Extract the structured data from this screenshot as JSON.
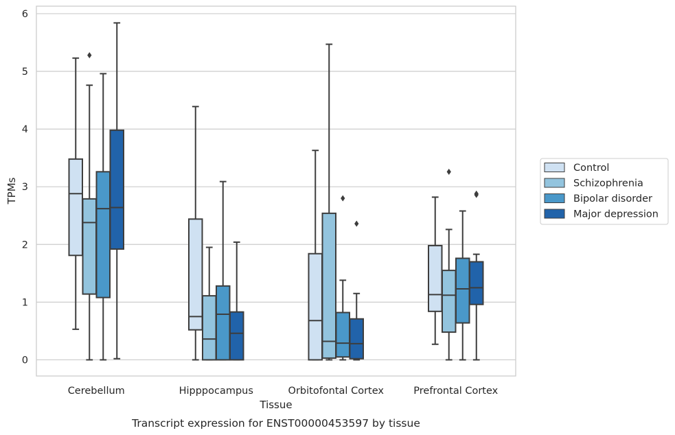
{
  "chart_data": {
    "type": "box",
    "xlabel": "Tissue",
    "ylabel": "TPMs",
    "caption": "Transcript expression for ENST00000453597 by tissue",
    "ylim": [
      -0.28,
      6.13
    ],
    "yticks": [
      0,
      1,
      2,
      3,
      4,
      5,
      6
    ],
    "grid": "horizontal",
    "legend_position": "right",
    "categories": [
      "Cerebellum",
      "Hipppocampus",
      "Orbitofontal Cortex",
      "Prefrontal Cortex"
    ],
    "series": [
      {
        "name": "Control",
        "color": "#cfe1f2",
        "boxes": [
          {
            "whisker_low": 0.53,
            "q1": 1.81,
            "median": 2.88,
            "q3": 3.48,
            "whisker_high": 5.23,
            "outliers": []
          },
          {
            "whisker_low": 0.0,
            "q1": 0.52,
            "median": 0.75,
            "q3": 2.44,
            "whisker_high": 4.39,
            "outliers": []
          },
          {
            "whisker_low": 0.0,
            "q1": 0.0,
            "median": 0.68,
            "q3": 1.84,
            "whisker_high": 3.63,
            "outliers": []
          },
          {
            "whisker_low": 0.27,
            "q1": 0.84,
            "median": 1.13,
            "q3": 1.98,
            "whisker_high": 2.82,
            "outliers": []
          }
        ]
      },
      {
        "name": "Schizophrenia",
        "color": "#93c4de",
        "boxes": [
          {
            "whisker_low": 0.0,
            "q1": 1.14,
            "median": 2.38,
            "q3": 2.79,
            "whisker_high": 4.76,
            "outliers": [
              5.28
            ]
          },
          {
            "whisker_low": 0.0,
            "q1": 0.0,
            "median": 0.36,
            "q3": 1.11,
            "whisker_high": 1.95,
            "outliers": []
          },
          {
            "whisker_low": 0.0,
            "q1": 0.03,
            "median": 0.32,
            "q3": 2.54,
            "whisker_high": 5.47,
            "outliers": []
          },
          {
            "whisker_low": 0.0,
            "q1": 0.48,
            "median": 1.12,
            "q3": 1.55,
            "whisker_high": 2.26,
            "outliers": [
              3.26
            ]
          }
        ]
      },
      {
        "name": "Bipolar disorder",
        "color": "#4a98c9",
        "boxes": [
          {
            "whisker_low": 0.0,
            "q1": 1.08,
            "median": 2.62,
            "q3": 3.26,
            "whisker_high": 4.96,
            "outliers": []
          },
          {
            "whisker_low": 0.0,
            "q1": 0.0,
            "median": 0.79,
            "q3": 1.28,
            "whisker_high": 3.09,
            "outliers": []
          },
          {
            "whisker_low": 0.0,
            "q1": 0.05,
            "median": 0.29,
            "q3": 0.82,
            "whisker_high": 1.38,
            "outliers": [
              2.8
            ]
          },
          {
            "whisker_low": 0.0,
            "q1": 0.64,
            "median": 1.23,
            "q3": 1.76,
            "whisker_high": 2.58,
            "outliers": []
          }
        ]
      },
      {
        "name": "Major depression",
        "color": "#2163aa",
        "boxes": [
          {
            "whisker_low": 0.02,
            "q1": 1.92,
            "median": 2.64,
            "q3": 3.98,
            "whisker_high": 5.84,
            "outliers": []
          },
          {
            "whisker_low": 0.0,
            "q1": 0.0,
            "median": 0.46,
            "q3": 0.83,
            "whisker_high": 2.04,
            "outliers": []
          },
          {
            "whisker_low": 0.0,
            "q1": 0.02,
            "median": 0.28,
            "q3": 0.71,
            "whisker_high": 1.15,
            "outliers": [
              2.36
            ]
          },
          {
            "whisker_low": 0.0,
            "q1": 0.96,
            "median": 1.25,
            "q3": 1.7,
            "whisker_high": 1.83,
            "outliers": [
              2.86,
              2.88
            ]
          }
        ]
      }
    ]
  }
}
